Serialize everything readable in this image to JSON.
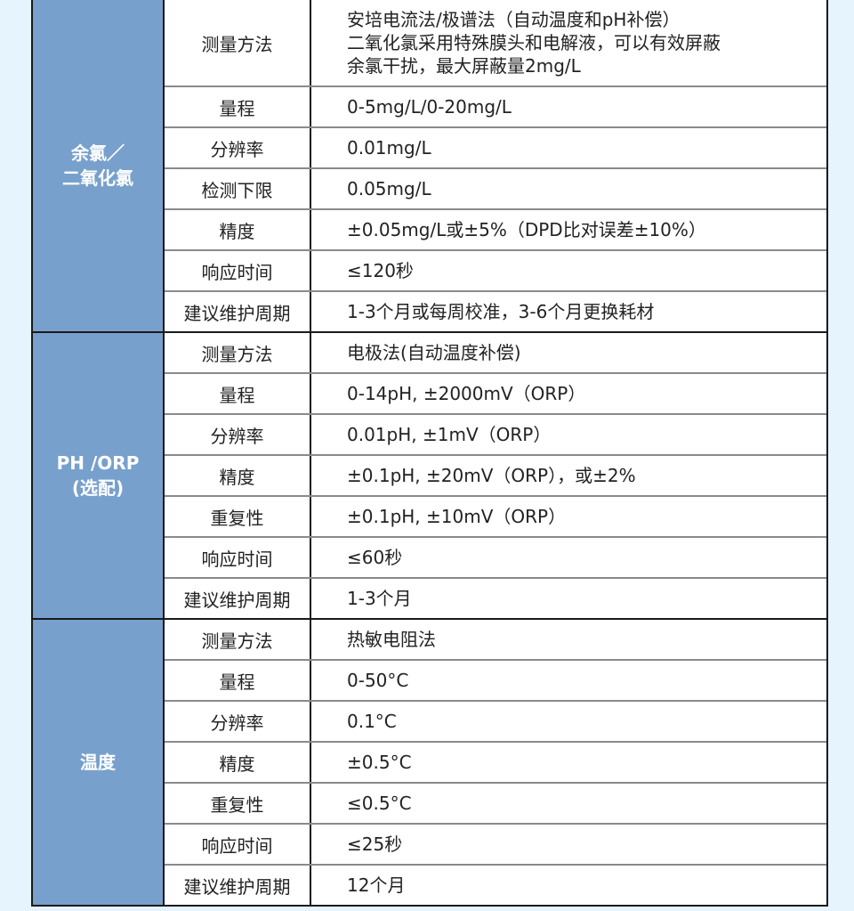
{
  "groups": [
    {
      "name": "余氯／\n二氧化氯",
      "rows": [
        {
          "item": "测量方法",
          "value": "安培电流法/极谱法（自动温度和pH补偿）\n二氧化氯采用特殊膜头和电解液，可以有效屏蔽\n余氯干扰，最大屏蔽量2mg/L"
        },
        {
          "item": "量程",
          "value": "0-5mg/L/0-20mg/L"
        },
        {
          "item": "分辨率",
          "value": "0.01mg/L"
        },
        {
          "item": "检测下限",
          "value": "0.05mg/L"
        },
        {
          "item": "精度",
          "value": "±0.05mg/L或±5%（DPD比对误差±10%）"
        },
        {
          "item": "响应时间",
          "value": "≤120秒"
        },
        {
          "item": "建议维护周期",
          "value": "1-3个月或每周校准，3-6个月更换耗材"
        }
      ]
    },
    {
      "name": "PH /ORP\n(选配)",
      "rows": [
        {
          "item": "测量方法",
          "value": "电极法(自动温度补偿)"
        },
        {
          "item": "量程",
          "value": "0-14pH, ±2000mV（ORP）"
        },
        {
          "item": "分辨率",
          "value": "0.01pH, ±1mV（ORP）"
        },
        {
          "item": "精度",
          "value": "±0.1pH, ±20mV（ORP），或±2%"
        },
        {
          "item": "重复性",
          "value": "±0.1pH, ±10mV（ORP）"
        },
        {
          "item": "响应时间",
          "value": "≤60秒"
        },
        {
          "item": "建议维护周期",
          "value": "1-3个月"
        }
      ]
    },
    {
      "name": "温度",
      "rows": [
        {
          "item": "测量方法",
          "value": "热敏电阻法"
        },
        {
          "item": "量程",
          "value": "0-50°C"
        },
        {
          "item": "分辨率",
          "value": "0.1°C"
        },
        {
          "item": "精度",
          "value": "±0.5°C"
        },
        {
          "item": "重复性",
          "value": "≤0.5°C"
        },
        {
          "item": "响应时间",
          "value": "≤25秒"
        },
        {
          "item": "建议维护周期",
          "value": "12个月"
        }
      ]
    }
  ]
}
